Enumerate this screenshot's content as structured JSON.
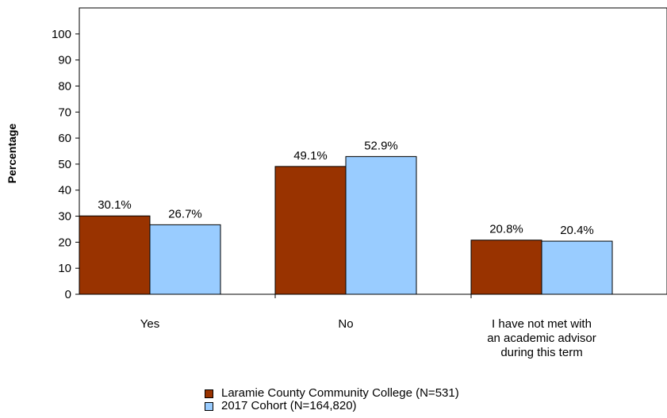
{
  "chart_data": {
    "type": "bar",
    "title": "",
    "xlabel": "",
    "ylabel": "Percentage",
    "ylim": [
      0,
      100
    ],
    "yticks": [
      0,
      10,
      20,
      30,
      40,
      50,
      60,
      70,
      80,
      90,
      100
    ],
    "categories": [
      [
        "Yes"
      ],
      [
        "No"
      ],
      [
        "I have not met with",
        "an academic advisor",
        "during this term"
      ]
    ],
    "series": [
      {
        "name": "Laramie County Community College (N=531)",
        "color": "#993300",
        "values": [
          30.1,
          49.1,
          20.8
        ],
        "labels": [
          "30.1%",
          "49.1%",
          "20.8%"
        ]
      },
      {
        "name": "2017 Cohort (N=164,820)",
        "color": "#99CCFF",
        "values": [
          26.7,
          52.9,
          20.4
        ],
        "labels": [
          "26.7%",
          "52.9%",
          "20.4%"
        ]
      }
    ],
    "grid": false,
    "legend_position": "bottom"
  }
}
